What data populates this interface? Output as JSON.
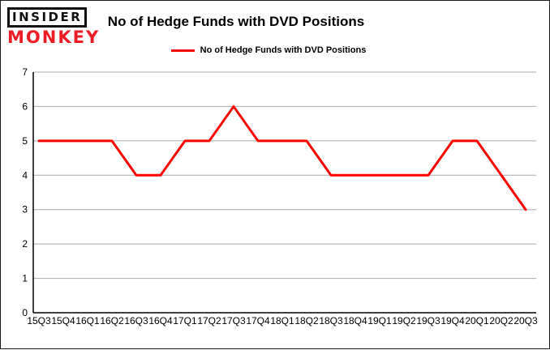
{
  "logo": {
    "line1": "INSIDER",
    "line2": "MONKEY",
    "insider_color": "#111111",
    "monkey_color": "#ee1c25"
  },
  "header": {
    "title": "No of Hedge Funds with DVD Positions"
  },
  "legend": {
    "label": "No of Hedge Funds with DVD Positions",
    "line_color": "#ff0000"
  },
  "chart_data": {
    "type": "line",
    "title": "No of Hedge Funds with DVD Positions",
    "categories": [
      "15Q3",
      "15Q4",
      "16Q1",
      "16Q2",
      "16Q3",
      "16Q4",
      "17Q1",
      "17Q2",
      "17Q3",
      "17Q4",
      "18Q1",
      "18Q2",
      "18Q3",
      "18Q4",
      "19Q1",
      "19Q2",
      "19Q3",
      "19Q4",
      "20Q1",
      "20Q2",
      "20Q3"
    ],
    "series": [
      {
        "name": "No of Hedge Funds with DVD Positions",
        "color": "#ff0000",
        "values": [
          5,
          5,
          5,
          5,
          4,
          4,
          5,
          5,
          6,
          5,
          5,
          5,
          4,
          4,
          4,
          4,
          4,
          5,
          5,
          4,
          3
        ]
      }
    ],
    "xlabel": "",
    "ylabel": "",
    "ylim": [
      0,
      7
    ],
    "yticks": [
      0,
      1,
      2,
      3,
      4,
      5,
      6,
      7
    ],
    "grid": true,
    "grid_color": "#ababab",
    "axis_color": "#000000",
    "legend_position": "top-center"
  }
}
